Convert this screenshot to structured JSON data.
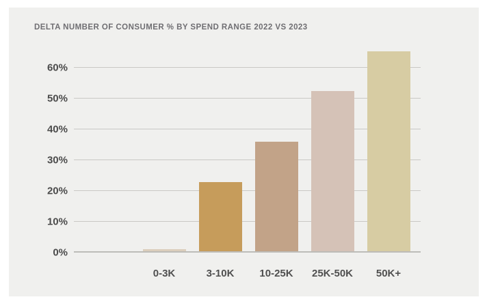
{
  "header": {
    "title": "DELTA NUMBER OF CONSUMER % BY SPEND RANGE 2022 VS 2023"
  },
  "colors": {
    "page_background": "#ffffff",
    "card_background": "#f0f0ee",
    "title_text": "#6f6e72",
    "axis_text": "#4b4b4b",
    "gridline": "#c9c8c5",
    "baseline": "#bdbcb8"
  },
  "chart_data": {
    "type": "bar",
    "title": "DELTA NUMBER OF CONSUMER % BY SPEND RANGE 2022 VS 2023",
    "categories": [
      "0-3K",
      "3-10K",
      "10-25K",
      "25K-50K",
      "50K+"
    ],
    "values": [
      0.7,
      22.5,
      35.5,
      52,
      65
    ],
    "bar_colors": [
      "#dbcebc",
      "#c69c5b",
      "#c2a388",
      "#d5c2b7",
      "#d7cca3"
    ],
    "xlabel": "",
    "ylabel": "",
    "y_ticks": [
      {
        "label": "0%",
        "value": 0
      },
      {
        "label": "10%",
        "value": 10
      },
      {
        "label": "20%",
        "value": 20
      },
      {
        "label": "30%",
        "value": 30
      },
      {
        "label": "40%",
        "value": 40
      },
      {
        "label": "50%",
        "value": 50
      },
      {
        "label": "60%",
        "value": 60
      }
    ],
    "ylim": [
      0,
      66
    ],
    "grid": true,
    "legend": null
  }
}
